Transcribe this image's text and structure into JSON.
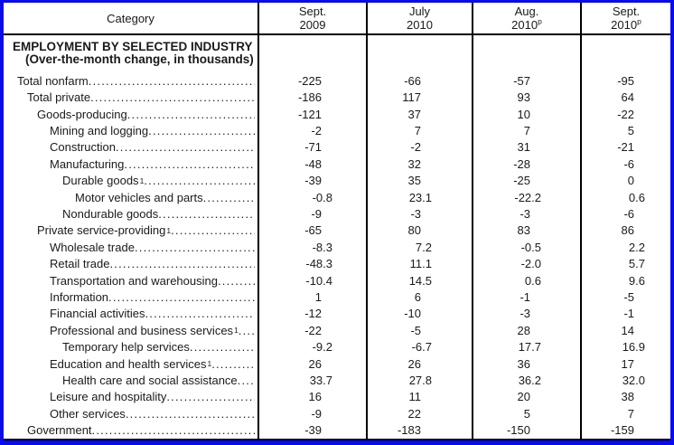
{
  "colors": {
    "frame_border": "#0a0aee",
    "table_lines": "#000000",
    "text": "#1a1a1a",
    "background": "#ffffff"
  },
  "table": {
    "header": {
      "category_label": "Category",
      "columns": [
        {
          "line1": "Sept.",
          "line2": "2009",
          "sup": ""
        },
        {
          "line1": "July",
          "line2": "2010",
          "sup": ""
        },
        {
          "line1": "Aug.",
          "line2": "2010",
          "sup": "p"
        },
        {
          "line1": "Sept.",
          "line2": "2010",
          "sup": "p"
        }
      ]
    },
    "section": {
      "title": "EMPLOYMENT BY SELECTED INDUSTRY",
      "subtitle": "(Over-the-month change, in thousands)"
    },
    "rows": [
      {
        "label": "Total nonfarm",
        "sup": "",
        "indent": 0,
        "values": [
          "-225",
          "-66",
          "-57",
          "-95"
        ]
      },
      {
        "label": "Total private",
        "sup": "",
        "indent": 1,
        "values": [
          "-186",
          "117",
          "93",
          "64"
        ]
      },
      {
        "label": "Goods-producing",
        "sup": "",
        "indent": 2,
        "values": [
          "-121",
          "37",
          "10",
          "-22"
        ]
      },
      {
        "label": "Mining and logging",
        "sup": "",
        "indent": 3,
        "values": [
          "-2",
          "7",
          "7",
          "5"
        ]
      },
      {
        "label": "Construction",
        "sup": "",
        "indent": 3,
        "values": [
          "-71",
          "-2",
          "31",
          "-21"
        ]
      },
      {
        "label": "Manufacturing",
        "sup": "",
        "indent": 3,
        "values": [
          "-48",
          "32",
          "-28",
          "-6"
        ]
      },
      {
        "label": "Durable goods",
        "sup": "1",
        "indent": 4,
        "values": [
          "-39",
          "35",
          "-25",
          "0"
        ]
      },
      {
        "label": "Motor vehicles and parts",
        "sup": "",
        "indent": 5,
        "values": [
          "-0.8",
          "23.1",
          "-22.2",
          "0.6"
        ]
      },
      {
        "label": "Nondurable goods",
        "sup": "",
        "indent": 4,
        "values": [
          "-9",
          "-3",
          "-3",
          "-6"
        ]
      },
      {
        "label": "Private service-providing",
        "sup": "1",
        "indent": 2,
        "values": [
          "-65",
          "80",
          "83",
          "86"
        ]
      },
      {
        "label": "Wholesale trade",
        "sup": "",
        "indent": 3,
        "values": [
          "-8.3",
          "7.2",
          "-0.5",
          "2.2"
        ]
      },
      {
        "label": "Retail trade",
        "sup": "",
        "indent": 3,
        "values": [
          "-48.3",
          "11.1",
          "-2.0",
          "5.7"
        ]
      },
      {
        "label": "Transportation and warehousing",
        "sup": "",
        "indent": 3,
        "values": [
          "-10.4",
          "14.5",
          "0.6",
          "9.6"
        ]
      },
      {
        "label": "Information",
        "sup": "",
        "indent": 3,
        "values": [
          "1",
          "6",
          "-1",
          "-5"
        ]
      },
      {
        "label": "Financial activities",
        "sup": "",
        "indent": 3,
        "values": [
          "-12",
          "-10",
          "-3",
          "-1"
        ]
      },
      {
        "label": "Professional and business services",
        "sup": "1",
        "indent": 3,
        "values": [
          "-22",
          "-5",
          "28",
          "14"
        ]
      },
      {
        "label": "Temporary help services",
        "sup": "",
        "indent": 4,
        "values": [
          "-9.2",
          "-6.7",
          "17.7",
          "16.9"
        ]
      },
      {
        "label": "Education and health services",
        "sup": "1",
        "indent": 3,
        "values": [
          "26",
          "26",
          "36",
          "17"
        ]
      },
      {
        "label": "Health care and social assistance",
        "sup": "",
        "indent": 4,
        "values": [
          "33.7",
          "27.8",
          "36.2",
          "32.0"
        ]
      },
      {
        "label": "Leisure and hospitality",
        "sup": "",
        "indent": 3,
        "values": [
          "16",
          "11",
          "20",
          "38"
        ]
      },
      {
        "label": "Other services",
        "sup": "",
        "indent": 3,
        "values": [
          "-9",
          "22",
          "5",
          "7"
        ]
      },
      {
        "label": "Government",
        "sup": "",
        "indent": 1,
        "values": [
          "-39",
          "-183",
          "-150",
          "-159"
        ]
      }
    ]
  }
}
